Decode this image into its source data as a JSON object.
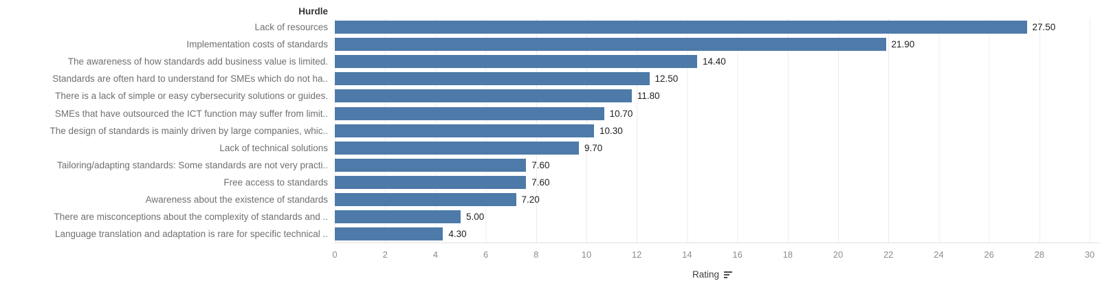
{
  "chart_data": {
    "type": "bar",
    "orientation": "horizontal",
    "category_axis_title": "Hurdle",
    "xlabel": "Rating",
    "sort_indicator": "descending",
    "categories": [
      "Lack of resources",
      "Implementation costs of standards",
      "The awareness of how standards add business value is limited.",
      "Standards are often hard to understand for SMEs which do not ha..",
      "There is a lack of simple or easy cybersecurity solutions or guides.",
      "SMEs that have outsourced the ICT function may suffer from limit..",
      "The design of standards is mainly driven by large companies, whic..",
      "Lack of technical solutions",
      "Tailoring/adapting standards: Some standards are not very practi..",
      "Free access to standards",
      "Awareness about the existence of standards",
      "There are misconceptions about the complexity of standards and ..",
      "Language translation and adaptation is rare for specific technical .."
    ],
    "values": [
      27.5,
      21.9,
      14.4,
      12.5,
      11.8,
      10.7,
      10.3,
      9.7,
      7.6,
      7.6,
      7.2,
      5.0,
      4.3
    ],
    "value_labels": [
      "27.50",
      "21.90",
      "14.40",
      "12.50",
      "11.80",
      "10.70",
      "10.30",
      "9.70",
      "7.60",
      "7.60",
      "7.20",
      "5.00",
      "4.30"
    ],
    "xlim": [
      0,
      30
    ],
    "xtick_labels": [
      "0",
      "2",
      "4",
      "6",
      "8",
      "10",
      "12",
      "14",
      "16",
      "18",
      "20",
      "22",
      "24",
      "26",
      "28",
      "30"
    ],
    "grid": "vertical gridlines every 2 units",
    "legend": "none",
    "bar_color": "#4d7aa8",
    "gridline_color": "#ececec",
    "axis_line_color": "#e0e0e0"
  }
}
